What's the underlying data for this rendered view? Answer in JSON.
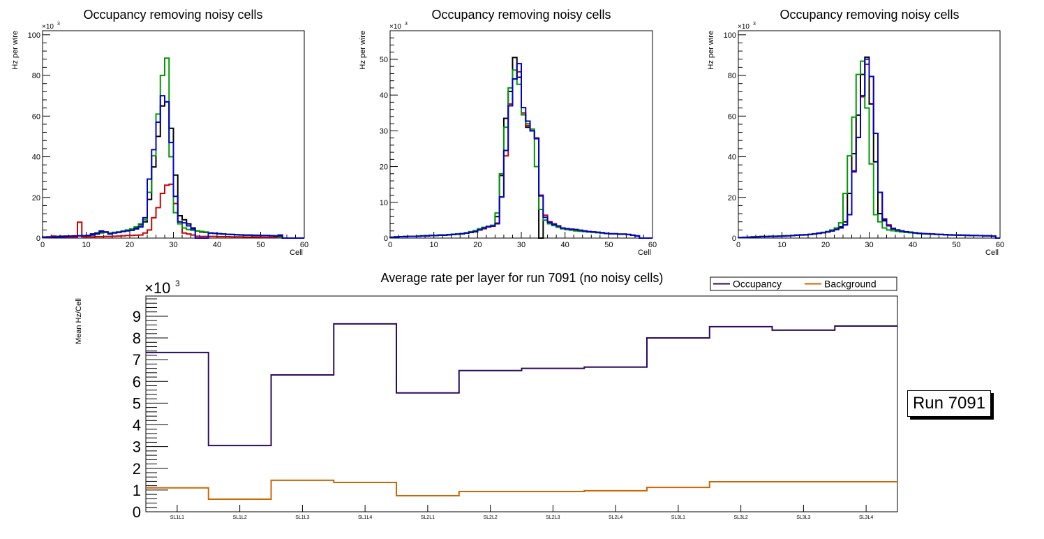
{
  "chart_data": [
    {
      "type": "step",
      "title": "Occupancy removing noisy cells",
      "xlabel": "Cell",
      "ylabel": "Hz per wire",
      "y_multiplier": "×10^3",
      "xlim": [
        0,
        60
      ],
      "ylim": [
        0,
        102
      ],
      "xticks": [
        0,
        10,
        20,
        30,
        40,
        50,
        60
      ],
      "yticks": [
        0,
        20,
        40,
        60,
        80,
        100
      ],
      "bin_start": 0,
      "bin_width": 1,
      "series": [
        {
          "name": "black",
          "color": "#000000",
          "values": [
            0.5,
            0.6,
            0.7,
            0.8,
            0.9,
            1.0,
            1.0,
            1.1,
            1.2,
            1.2,
            1.3,
            2.0,
            2.5,
            3.0,
            3.0,
            2.5,
            2.8,
            3.0,
            3.3,
            3.8,
            4.2,
            5.0,
            6.5,
            8.0,
            19,
            35,
            50,
            65,
            67,
            54,
            31,
            11,
            9,
            7,
            5,
            3.5,
            3.0,
            2.8,
            2.5,
            2.4,
            2.2,
            2.0,
            1.9,
            1.8,
            1.7,
            1.6,
            1.5,
            1.5,
            1.4,
            1.4,
            1.3,
            1.3,
            1.2,
            1.2,
            1.1,
            0,
            0,
            0,
            0,
            0
          ]
        },
        {
          "name": "red",
          "color": "#cc0000",
          "values": [
            0.2,
            0.3,
            1.0,
            0.6,
            0.5,
            0.5,
            0.4,
            0.4,
            7.8,
            0.6,
            0.6,
            0.6,
            0.7,
            0.7,
            0.8,
            0.8,
            0.9,
            1.0,
            1.1,
            1.3,
            1.3,
            1.4,
            1.5,
            2.5,
            4,
            10,
            15,
            22,
            26,
            26.5,
            17,
            8,
            2.5,
            2,
            1.5,
            0.9,
            0.8,
            0.8,
            0.8,
            0.8,
            0.7,
            0.7,
            0.7,
            0.6,
            0.6,
            0.6,
            0.5,
            0.5,
            0.5,
            0.5,
            0.4,
            0.4,
            0.4,
            0.4,
            0.3,
            0,
            0,
            0,
            0,
            0
          ]
        },
        {
          "name": "green",
          "color": "#009900",
          "values": [
            0.3,
            0.4,
            0.5,
            0.6,
            0.7,
            0.8,
            0.9,
            1.0,
            1.1,
            1.2,
            1.3,
            1.5,
            2.0,
            2.5,
            2.8,
            2.5,
            2.8,
            3.0,
            3.5,
            4.0,
            4.5,
            5.5,
            7.0,
            9.0,
            22.5,
            40.5,
            61,
            80,
            88.5,
            40,
            12.5,
            7,
            5,
            4.2,
            3.8,
            3.5,
            3.3,
            3.0,
            2.5,
            2.3,
            2.2,
            2.0,
            1.9,
            1.8,
            1.7,
            1.6,
            1.5,
            1.5,
            1.4,
            1.4,
            1.3,
            1.3,
            1.3,
            1.2,
            0.5,
            0,
            0,
            0,
            0,
            0
          ]
        },
        {
          "name": "blue",
          "color": "#0000cc",
          "values": [
            0.3,
            0.4,
            0.5,
            0.6,
            0.7,
            0.8,
            0.9,
            1.0,
            1.1,
            1.2,
            1.3,
            1.5,
            2.0,
            3.5,
            3.0,
            2.0,
            2.5,
            2.8,
            3.2,
            3.5,
            3.8,
            4.5,
            5.5,
            10,
            29,
            43.5,
            57,
            70,
            67,
            47,
            20.5,
            8,
            7.5,
            6,
            4.5,
            0,
            0,
            0,
            2.5,
            2.3,
            2.1,
            2.0,
            1.8,
            1.7,
            1.6,
            1.5,
            1.4,
            1.4,
            1.3,
            1.3,
            1.2,
            1.2,
            1.1,
            1.0,
            1.5,
            0,
            0,
            0,
            0,
            0
          ]
        }
      ]
    },
    {
      "type": "step",
      "title": "Occupancy removing noisy cells",
      "xlabel": "Cell",
      "ylabel": "Hz per wire",
      "y_multiplier": "×10^3",
      "xlim": [
        0,
        60
      ],
      "ylim": [
        0,
        58
      ],
      "xticks": [
        0,
        10,
        20,
        30,
        40,
        50,
        60
      ],
      "yticks": [
        0,
        10,
        20,
        30,
        40,
        50
      ],
      "bin_start": 0,
      "bin_width": 1,
      "series": [
        {
          "name": "black",
          "color": "#000000",
          "values": [
            0.2,
            0.3,
            0.4,
            0.4,
            0.5,
            0.5,
            0.5,
            0.6,
            0.6,
            0.7,
            0.7,
            0.8,
            0.8,
            0.9,
            1.0,
            1.1,
            1.2,
            1.4,
            1.6,
            1.8,
            2.3,
            2.8,
            3.2,
            3.4,
            6,
            17.5,
            33.5,
            41,
            50.5,
            45,
            34.5,
            31,
            30,
            28,
            0,
            5,
            4.4,
            3.8,
            3.2,
            2.6,
            2.4,
            2.3,
            2.2,
            2.1,
            1.9,
            1.8,
            1.7,
            1.6,
            1.5,
            1.3,
            1.2,
            1.2,
            1.1,
            1.1,
            1.0,
            0.8,
            0.6,
            0,
            0,
            0
          ]
        },
        {
          "name": "red",
          "color": "#cc0000",
          "values": [
            0.2,
            0.3,
            0.4,
            0.4,
            0.5,
            0.5,
            0.5,
            0.6,
            0.6,
            0.7,
            0.7,
            0.8,
            0.8,
            0.9,
            1.0,
            1.1,
            1.2,
            1.4,
            1.6,
            1.8,
            2.3,
            2.6,
            3.1,
            3.3,
            4.2,
            11.5,
            23,
            37.5,
            44.5,
            46.5,
            35,
            31.5,
            30,
            28,
            12,
            6.4,
            4.6,
            4.0,
            3.4,
            2.8,
            2.6,
            2.5,
            2.4,
            2.2,
            2.0,
            1.8,
            1.7,
            1.6,
            1.5,
            1.3,
            1.2,
            1.2,
            1.1,
            1.1,
            1.0,
            0.8,
            0.6,
            0,
            0,
            0
          ]
        },
        {
          "name": "green",
          "color": "#009900",
          "values": [
            0.3,
            0.4,
            0.4,
            0.5,
            0.5,
            0.5,
            0.6,
            0.6,
            0.7,
            0.8,
            0.8,
            0.9,
            0.9,
            1.0,
            1.1,
            1.2,
            1.3,
            1.5,
            1.8,
            2.1,
            2.6,
            3.0,
            3.3,
            3.6,
            7,
            18,
            31,
            42,
            47,
            43,
            34.5,
            32,
            30.5,
            20,
            8,
            5,
            4,
            3.5,
            3,
            2.6,
            2.4,
            2.2,
            2.0,
            1.9,
            1.8,
            1.7,
            1.6,
            1.5,
            1.4,
            1.3,
            1.2,
            1.2,
            1.1,
            1.1,
            1.0,
            0.8,
            0.6,
            0,
            0,
            0
          ]
        },
        {
          "name": "blue",
          "color": "#0000cc",
          "values": [
            0.2,
            0.3,
            0.4,
            0.4,
            0.5,
            0.5,
            0.5,
            0.6,
            0.6,
            0.7,
            0.7,
            0.8,
            0.8,
            0.9,
            1.0,
            1.1,
            1.2,
            1.4,
            1.6,
            1.8,
            2.3,
            2.8,
            3.2,
            3.4,
            4,
            11.5,
            24.5,
            37,
            44.5,
            48.8,
            36.5,
            32.7,
            30,
            27.8,
            11.8,
            5.8,
            4.4,
            3.8,
            3.4,
            2.8,
            2.6,
            2.5,
            2.4,
            2.2,
            2.0,
            1.8,
            1.7,
            1.6,
            1.5,
            1.3,
            1.2,
            1.2,
            1.1,
            1.1,
            1.0,
            0.8,
            0.6,
            0,
            0,
            0
          ]
        }
      ]
    },
    {
      "type": "step",
      "title": "Occupancy removing noisy cells",
      "xlabel": "Cell",
      "ylabel": "Hz per wire",
      "y_multiplier": "×10^3",
      "xlim": [
        0,
        60
      ],
      "ylim": [
        0,
        102
      ],
      "xticks": [
        0,
        10,
        20,
        30,
        40,
        50,
        60
      ],
      "yticks": [
        0,
        20,
        40,
        60,
        80,
        100
      ],
      "bin_start": 0,
      "bin_width": 1,
      "series": [
        {
          "name": "black",
          "color": "#000000",
          "values": [
            0.3,
            0.4,
            0.5,
            0.6,
            0.7,
            0.8,
            0.8,
            0.9,
            0.9,
            1.0,
            1.1,
            1.2,
            1.3,
            1.5,
            1.6,
            1.7,
            1.9,
            2.1,
            2.5,
            2.8,
            3.2,
            3.8,
            4.5,
            5.5,
            8,
            22,
            41.5,
            60.5,
            80.5,
            89,
            66,
            37.5,
            12,
            8.5,
            6,
            4.5,
            3.8,
            3.4,
            3.0,
            2.8,
            2.5,
            2.3,
            2.1,
            2.0,
            1.9,
            1.8,
            1.7,
            1.6,
            1.5,
            1.5,
            1.4,
            1.4,
            1.3,
            1.3,
            1.2,
            1.2,
            1.1,
            1.1,
            1.0,
            0
          ]
        },
        {
          "name": "red",
          "color": "#cc0000",
          "values": [
            0.2,
            0.3,
            0.4,
            0.5,
            0.6,
            0.7,
            0.7,
            0.8,
            0.8,
            0.9,
            1.0,
            1.1,
            1.2,
            1.4,
            1.5,
            1.6,
            1.8,
            2.0,
            2.3,
            2.6,
            3.0,
            3.5,
            4.2,
            5.0,
            6.5,
            11.5,
            32.5,
            49.5,
            69.5,
            85.5,
            79.5,
            51.5,
            22.5,
            9.5,
            6.5,
            4.8,
            4.0,
            3.5,
            3.1,
            2.9,
            2.6,
            2.4,
            2.2,
            2.1,
            2.0,
            1.9,
            1.8,
            1.7,
            1.6,
            1.5,
            1.5,
            1.4,
            1.4,
            1.3,
            1.3,
            1.2,
            1.1,
            1.1,
            1.0,
            0
          ]
        },
        {
          "name": "green",
          "color": "#009900",
          "values": [
            0.3,
            0.4,
            0.5,
            0.6,
            0.7,
            0.8,
            0.8,
            0.9,
            0.9,
            1.0,
            1.1,
            1.2,
            1.3,
            1.5,
            1.6,
            1.7,
            1.9,
            2.1,
            2.5,
            2.8,
            3.2,
            4.0,
            5.0,
            7.5,
            22,
            40.5,
            59.5,
            80.5,
            87,
            64,
            36.5,
            11.5,
            8,
            5,
            4,
            3.6,
            3.3,
            3.0,
            2.8,
            2.6,
            2.4,
            2.2,
            2.1,
            2.0,
            1.9,
            1.8,
            1.7,
            1.6,
            1.5,
            1.5,
            1.4,
            1.4,
            1.3,
            1.3,
            1.2,
            1.2,
            1.1,
            1.1,
            1.0,
            0
          ]
        },
        {
          "name": "blue",
          "color": "#0000cc",
          "values": [
            0.2,
            0.3,
            0.4,
            0.5,
            0.6,
            0.7,
            0.7,
            0.8,
            0.8,
            0.9,
            1.0,
            1.1,
            1.2,
            1.4,
            1.5,
            1.6,
            1.8,
            2.0,
            2.3,
            2.6,
            3.0,
            3.5,
            4.2,
            5.0,
            6.5,
            11.5,
            33,
            49.5,
            70,
            88,
            79.5,
            51.5,
            22.5,
            9,
            6,
            4.8,
            4.0,
            3.5,
            3.1,
            2.9,
            2.6,
            2.4,
            2.2,
            2.1,
            2.0,
            1.9,
            1.8,
            1.7,
            1.6,
            1.5,
            1.5,
            1.4,
            1.4,
            1.3,
            1.3,
            1.2,
            1.1,
            1.1,
            1.0,
            0
          ]
        }
      ]
    },
    {
      "type": "step",
      "title": "Average rate per layer for run 7091 (no noisy cells)",
      "xlabel": "",
      "ylabel": "Mean Hz/Cell",
      "y_multiplier": "×10^3",
      "categories": [
        "SL1L1",
        "SL1L2",
        "SL1L3",
        "SL1L4",
        "SL2L1",
        "SL2L2",
        "SL2L3",
        "SL2L4",
        "SL3L1",
        "SL3L2",
        "SL3L3",
        "SL3L4"
      ],
      "ylim": [
        0,
        9.93
      ],
      "yticks": [
        0,
        1,
        2,
        3,
        4,
        5,
        6,
        7,
        8,
        9
      ],
      "legend": {
        "placement": "top-right",
        "entries": [
          "Occupancy",
          "Background"
        ]
      },
      "series": [
        {
          "name": "Occupancy",
          "color": "#2d0a5e",
          "values": [
            7.33,
            3.05,
            6.3,
            8.65,
            5.47,
            6.5,
            6.6,
            6.66,
            8.0,
            8.52,
            8.36,
            8.55
          ]
        },
        {
          "name": "Background",
          "color": "#cc6600",
          "values": [
            1.1,
            0.58,
            1.45,
            1.35,
            0.74,
            0.93,
            0.93,
            0.97,
            1.12,
            1.38,
            1.38,
            1.38
          ]
        }
      ]
    }
  ],
  "run_label": "Run 7091"
}
